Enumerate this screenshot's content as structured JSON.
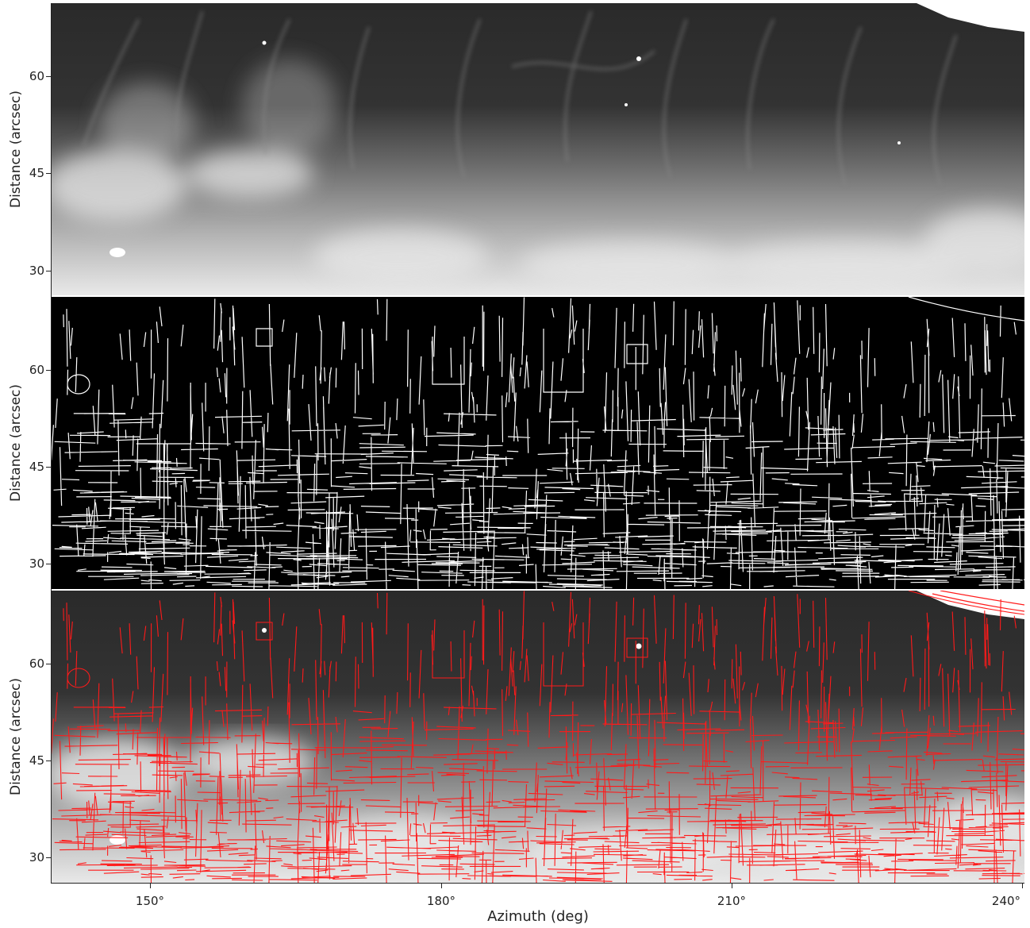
{
  "figure": {
    "panels": [
      {
        "id": "image",
        "ylabel": "Distance (arcsec)"
      },
      {
        "id": "edges",
        "ylabel": "Distance (arcsec)"
      },
      {
        "id": "overlay",
        "ylabel": "Distance (arcsec)"
      }
    ],
    "y_ticks": [
      "60",
      "45",
      "30"
    ],
    "x_ticks": [
      "150°",
      "180°",
      "210°",
      "240°"
    ],
    "xlabel": "Azimuth (deg)",
    "colors": {
      "edge_overlay": "#ff1a1a",
      "edge_map": "#ffffff",
      "background": "#000000"
    }
  }
}
